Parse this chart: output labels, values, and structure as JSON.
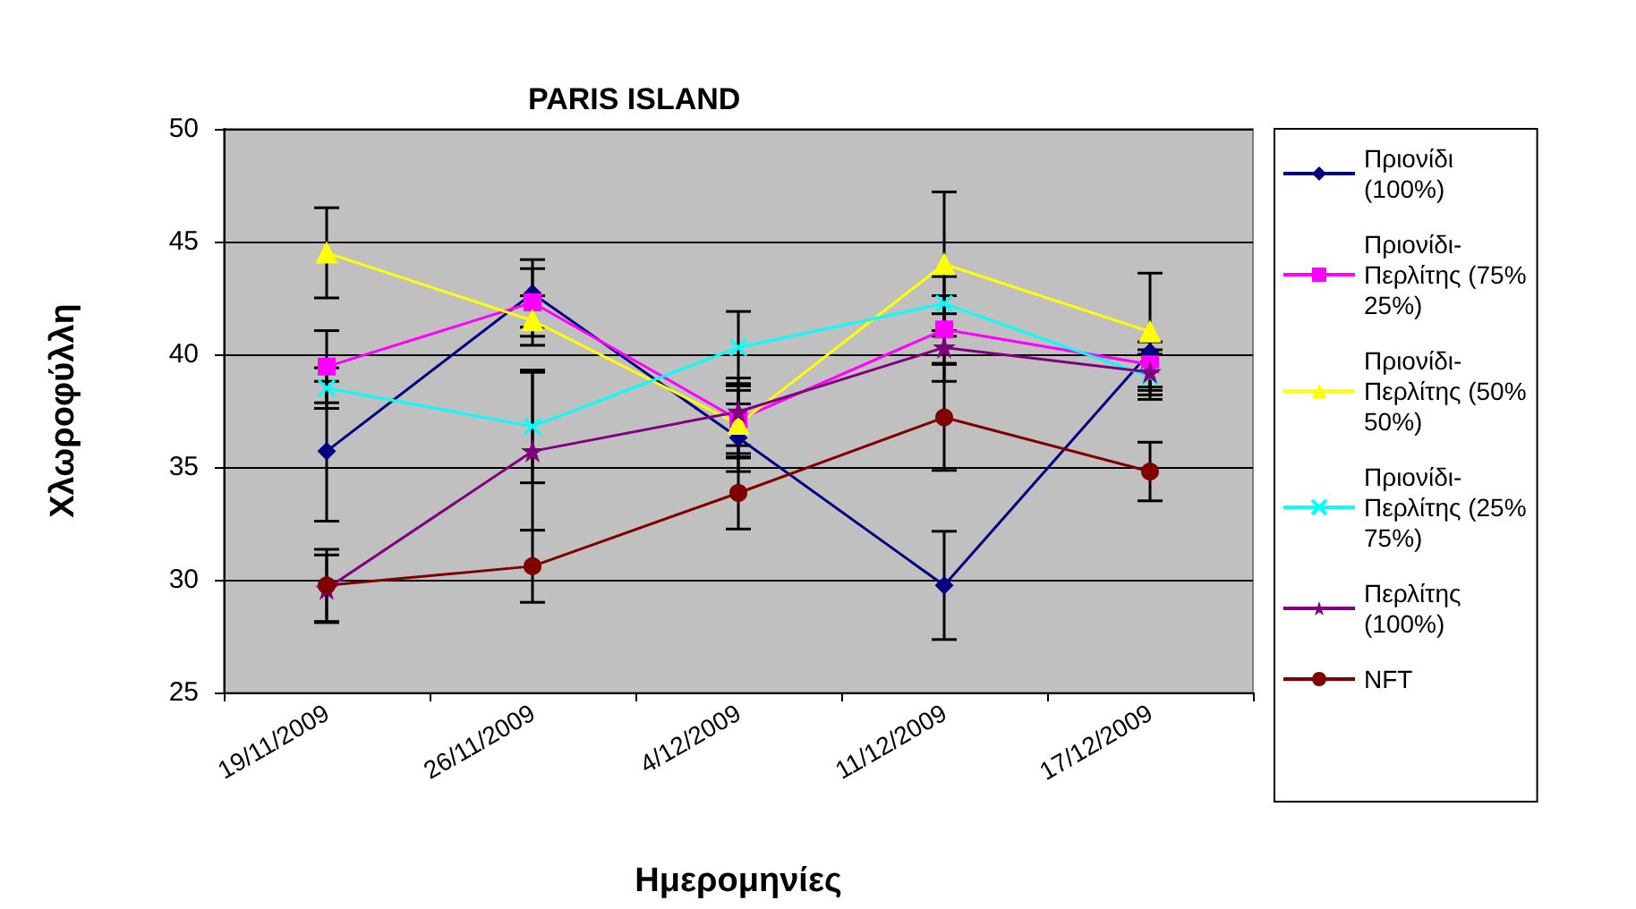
{
  "chart_data": {
    "type": "line",
    "title": "PARIS ISLAND",
    "xlabel": "Ημερομηνίες",
    "ylabel": "Χλωροφύλλη",
    "categories": [
      "19/11/2009",
      "26/11/2009",
      "4/12/2009",
      "11/12/2009",
      "17/12/2009"
    ],
    "ylim": [
      25,
      50
    ],
    "yticks": [
      25,
      30,
      35,
      40,
      45,
      50
    ],
    "grid": "y",
    "legend": "right",
    "series": [
      {
        "name": "Πριονίδι (100%)",
        "color": "#000080",
        "marker": "diamond",
        "values": [
          35.7,
          42.7,
          36.3,
          29.75,
          40.1
        ],
        "errors": [
          3.1,
          1.5,
          1.5,
          2.4,
          null
        ]
      },
      {
        "name": "Πριονίδι-Περλίτης (75% 25%)",
        "color": "#ff00ff",
        "marker": "square",
        "values": [
          39.45,
          42.3,
          37.1,
          41.1,
          39.55
        ],
        "errors": [
          1.6,
          1.5,
          1.5,
          1.5,
          1.0
        ]
      },
      {
        "name": "Πριονίδι-Περλίτης (50% 50%)",
        "color": "#ffff00",
        "marker": "triangle",
        "values": [
          44.5,
          41.5,
          36.9,
          44.0,
          41.0
        ],
        "errors": [
          2.0,
          1.1,
          1.5,
          3.2,
          2.6
        ]
      },
      {
        "name": "Πριονίδι-Περλίτης (25% 75%)",
        "color": "#00ffff",
        "marker": "cross",
        "values": [
          38.5,
          36.8,
          40.3,
          42.25,
          39.0
        ],
        "errors": [
          0.9,
          2.5,
          1.6,
          1.2,
          1.0
        ]
      },
      {
        "name": "Περλίτης (100%)",
        "color": "#800080",
        "marker": "star",
        "values": [
          29.6,
          35.7,
          37.45,
          40.3,
          39.2
        ],
        "errors": [
          1.5,
          3.5,
          1.5,
          1.5,
          1.0
        ]
      },
      {
        "name": "NFT",
        "color": "#800000",
        "marker": "circle",
        "values": [
          29.75,
          30.6,
          33.85,
          37.2,
          34.8
        ],
        "errors": [
          1.6,
          1.6,
          1.6,
          2.35,
          1.3
        ]
      }
    ]
  }
}
